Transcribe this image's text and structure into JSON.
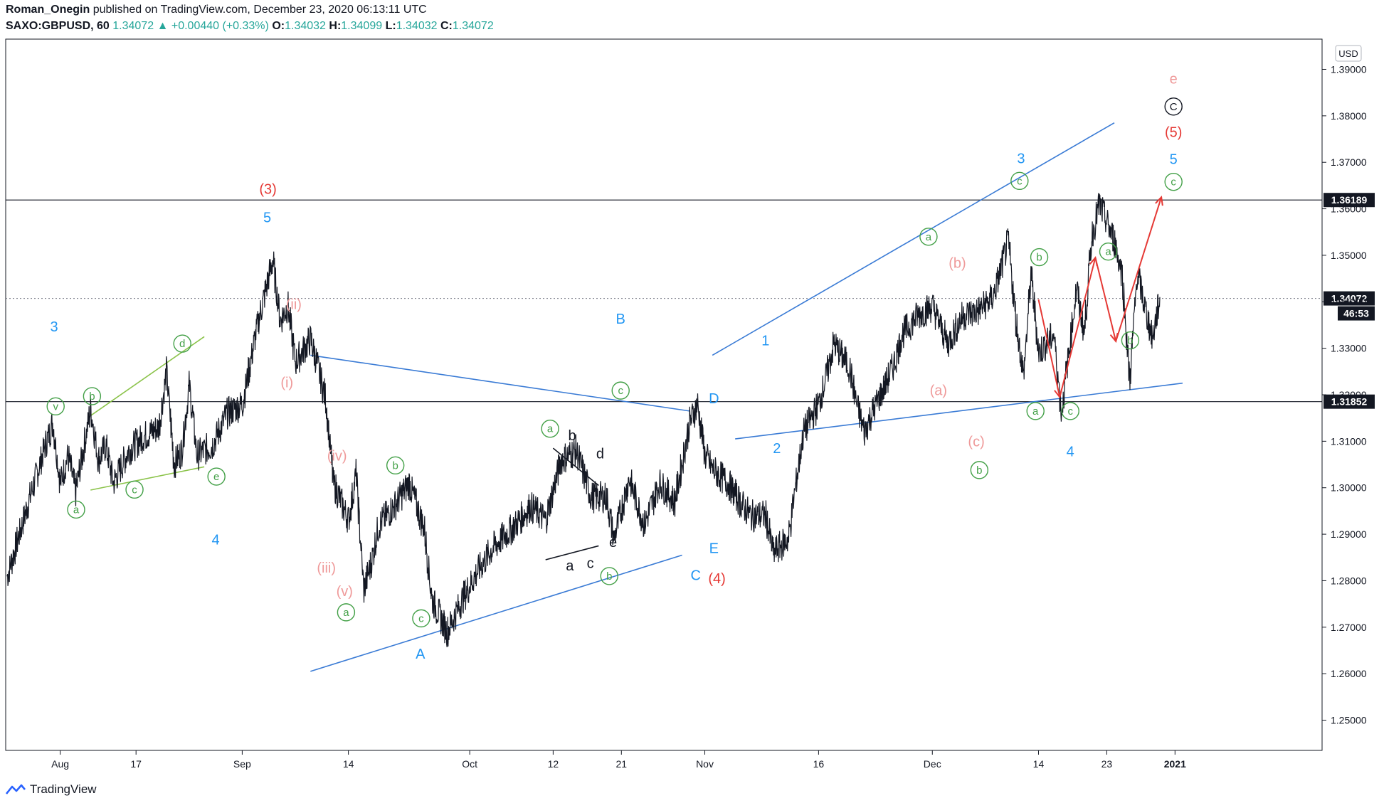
{
  "header": {
    "author": "Roman_Onegin",
    "published_text": "published on TradingView.com, December 23, 2020 06:13:11 UTC",
    "symbol": "SAXO:GBPUSD, 60",
    "last": "1.34072",
    "change_arrow": "▲",
    "change": "+0.00440 (+0.33%)",
    "o_label": "O:",
    "o": "1.34032",
    "h_label": "H:",
    "h": "1.34099",
    "l_label": "L:",
    "l": "1.34032",
    "c_label": "C:",
    "c": "1.34072"
  },
  "footer": {
    "brand": "TradingView",
    "icon": "tradingview-logo-icon"
  },
  "colors": {
    "blue": "#2196f3",
    "trend_blue": "#3a7bd5",
    "green": "#43a047",
    "light_green": "#8bc34a",
    "red": "#e53935",
    "salmon": "#ef9a9a",
    "black": "#131722",
    "up": "#26a69a"
  },
  "chart_data": {
    "type": "line",
    "title": "SAXO:GBPUSD, 60",
    "currency_label": "USD",
    "ylim": [
      1.2435,
      1.3965
    ],
    "y_ticks": [
      "1.25000",
      "1.26000",
      "1.27000",
      "1.28000",
      "1.29000",
      "1.30000",
      "1.31000",
      "1.32000",
      "1.33000",
      "1.34000",
      "1.35000",
      "1.36000",
      "1.37000",
      "1.38000",
      "1.39000"
    ],
    "x_domain": [
      0,
      152
    ],
    "x_ticks": [
      {
        "x": 7,
        "label": "Aug",
        "bold": false
      },
      {
        "x": 17,
        "label": "17",
        "bold": false
      },
      {
        "x": 31,
        "label": "Sep",
        "bold": false
      },
      {
        "x": 45,
        "label": "14",
        "bold": false
      },
      {
        "x": 61,
        "label": "Oct",
        "bold": false
      },
      {
        "x": 72,
        "label": "12",
        "bold": false
      },
      {
        "x": 81,
        "label": "21",
        "bold": false
      },
      {
        "x": 92,
        "label": "Nov",
        "bold": false
      },
      {
        "x": 107,
        "label": "16",
        "bold": false
      },
      {
        "x": 122,
        "label": "Dec",
        "bold": false
      },
      {
        "x": 136,
        "label": "14",
        "bold": false
      },
      {
        "x": 145,
        "label": "23",
        "bold": false
      },
      {
        "x": 154,
        "label": "2021",
        "bold": true
      }
    ],
    "price_path": [
      [
        0,
        1.281
      ],
      [
        3,
        1.298
      ],
      [
        5,
        1.309
      ],
      [
        6,
        1.314
      ],
      [
        7,
        1.301
      ],
      [
        8,
        1.307
      ],
      [
        9,
        1.299
      ],
      [
        11,
        1.317
      ],
      [
        12,
        1.306
      ],
      [
        13,
        1.309
      ],
      [
        14,
        1.301
      ],
      [
        16,
        1.308
      ],
      [
        18,
        1.311
      ],
      [
        20,
        1.313
      ],
      [
        21,
        1.325
      ],
      [
        22,
        1.305
      ],
      [
        23,
        1.308
      ],
      [
        24,
        1.322
      ],
      [
        25,
        1.307
      ],
      [
        27,
        1.309
      ],
      [
        29,
        1.316
      ],
      [
        31,
        1.318
      ],
      [
        33,
        1.335
      ],
      [
        34,
        1.342
      ],
      [
        35,
        1.349
      ],
      [
        36,
        1.336
      ],
      [
        37,
        1.339
      ],
      [
        38,
        1.327
      ],
      [
        40,
        1.332
      ],
      [
        42,
        1.319
      ],
      [
        43,
        1.301
      ],
      [
        45,
        1.293
      ],
      [
        46,
        1.303
      ],
      [
        47,
        1.278
      ],
      [
        48,
        1.284
      ],
      [
        49,
        1.292
      ],
      [
        51,
        1.296
      ],
      [
        53,
        1.301
      ],
      [
        55,
        1.291
      ],
      [
        56,
        1.276
      ],
      [
        58,
        1.269
      ],
      [
        60,
        1.276
      ],
      [
        62,
        1.282
      ],
      [
        64,
        1.287
      ],
      [
        67,
        1.292
      ],
      [
        69,
        1.296
      ],
      [
        71,
        1.293
      ],
      [
        73,
        1.306
      ],
      [
        75,
        1.308
      ],
      [
        76,
        1.303
      ],
      [
        77,
        1.298
      ],
      [
        79,
        1.298
      ],
      [
        80,
        1.289
      ],
      [
        82,
        1.302
      ],
      [
        84,
        1.292
      ],
      [
        86,
        1.301
      ],
      [
        88,
        1.297
      ],
      [
        90,
        1.314
      ],
      [
        91,
        1.318
      ],
      [
        92,
        1.307
      ],
      [
        93,
        1.304
      ],
      [
        95,
        1.301
      ],
      [
        97,
        1.296
      ],
      [
        98,
        1.294
      ],
      [
        100,
        1.294
      ],
      [
        101,
        1.286
      ],
      [
        103,
        1.289
      ],
      [
        104,
        1.301
      ],
      [
        105,
        1.312
      ],
      [
        107,
        1.318
      ],
      [
        108,
        1.324
      ],
      [
        109,
        1.331
      ],
      [
        111,
        1.326
      ],
      [
        112,
        1.318
      ],
      [
        113,
        1.312
      ],
      [
        114,
        1.316
      ],
      [
        116,
        1.323
      ],
      [
        117,
        1.327
      ],
      [
        118,
        1.333
      ],
      [
        120,
        1.337
      ],
      [
        122,
        1.339
      ],
      [
        124,
        1.331
      ],
      [
        126,
        1.337
      ],
      [
        128,
        1.338
      ],
      [
        130,
        1.341
      ],
      [
        132,
        1.353
      ],
      [
        133,
        1.336
      ],
      [
        134,
        1.324
      ],
      [
        135,
        1.346
      ],
      [
        136,
        1.329
      ],
      [
        138,
        1.333
      ],
      [
        139,
        1.316
      ],
      [
        141,
        1.343
      ],
      [
        142,
        1.333
      ],
      [
        143,
        1.354
      ],
      [
        144,
        1.361
      ],
      [
        146,
        1.353
      ],
      [
        147,
        1.346
      ],
      [
        148,
        1.323
      ],
      [
        149,
        1.346
      ],
      [
        150,
        1.339
      ],
      [
        151,
        1.332
      ],
      [
        152,
        1.341
      ]
    ],
    "horizontal_lines": [
      {
        "price": 1.36189,
        "label": "1.36189",
        "style": "solid"
      },
      {
        "price": 1.31852,
        "label": "1.31852",
        "style": "solid"
      },
      {
        "price": 1.34072,
        "label": "1.34072",
        "style": "dotted",
        "countdown": "46:53"
      }
    ],
    "trendlines": [
      {
        "from": [
          11,
          1.2995
        ],
        "to": [
          26,
          1.3045
        ],
        "color": "light_green"
      },
      {
        "from": [
          11,
          1.3155
        ],
        "to": [
          26,
          1.3325
        ],
        "color": "light_green"
      },
      {
        "from": [
          40,
          1.2605
        ],
        "to": [
          89,
          1.2855
        ],
        "color": "trend_blue"
      },
      {
        "from": [
          40,
          1.3285
        ],
        "to": [
          90,
          1.3165
        ],
        "color": "trend_blue"
      },
      {
        "from": [
          71,
          1.2845
        ],
        "to": [
          78,
          1.2875
        ],
        "color": "black"
      },
      {
        "from": [
          72,
          1.3085
        ],
        "to": [
          78,
          1.3005
        ],
        "color": "black"
      },
      {
        "from": [
          93,
          1.3285
        ],
        "to": [
          146,
          1.3785
        ],
        "color": "trend_blue"
      },
      {
        "from": [
          96,
          1.3105
        ],
        "to": [
          155,
          1.3225
        ],
        "color": "trend_blue"
      }
    ],
    "projection": {
      "color": "red",
      "points": [
        [
          136,
          1.3405
        ],
        [
          138.8,
          1.3195
        ],
        [
          143.5,
          1.3495
        ],
        [
          146.2,
          1.3315
        ],
        [
          152.2,
          1.3625
        ]
      ]
    },
    "annotations": [
      {
        "x": 6.2,
        "y": 1.3347,
        "text": "3",
        "kind": "plain",
        "color": "blue"
      },
      {
        "x": 27.5,
        "y": 1.2889,
        "text": "4",
        "kind": "plain",
        "color": "blue"
      },
      {
        "x": 6.4,
        "y": 1.3175,
        "text": "v",
        "kind": "circle",
        "color": "green"
      },
      {
        "x": 11.2,
        "y": 1.3197,
        "text": "b",
        "kind": "circle",
        "color": "green"
      },
      {
        "x": 9.1,
        "y": 1.2953,
        "text": "a",
        "kind": "circle",
        "color": "green"
      },
      {
        "x": 16.8,
        "y": 1.2996,
        "text": "c",
        "kind": "circle",
        "color": "green"
      },
      {
        "x": 23.1,
        "y": 1.331,
        "text": "d",
        "kind": "circle",
        "color": "green"
      },
      {
        "x": 27.6,
        "y": 1.3024,
        "text": "e",
        "kind": "circle",
        "color": "green"
      },
      {
        "x": 34.4,
        "y": 1.3643,
        "text": "(3)",
        "kind": "plain",
        "color": "red"
      },
      {
        "x": 34.3,
        "y": 1.3582,
        "text": "5",
        "kind": "plain",
        "color": "blue"
      },
      {
        "x": 37.8,
        "y": 1.3395,
        "text": "(ii)",
        "kind": "plain",
        "color": "salmon"
      },
      {
        "x": 36.9,
        "y": 1.3227,
        "text": "(i)",
        "kind": "plain",
        "color": "salmon"
      },
      {
        "x": 43.5,
        "y": 1.3069,
        "text": "(iv)",
        "kind": "plain",
        "color": "salmon"
      },
      {
        "x": 42.1,
        "y": 1.2828,
        "text": "(iii)",
        "kind": "plain",
        "color": "salmon"
      },
      {
        "x": 44.5,
        "y": 1.2778,
        "text": "(v)",
        "kind": "plain",
        "color": "salmon"
      },
      {
        "x": 44.7,
        "y": 1.2732,
        "text": "a",
        "kind": "circle",
        "color": "green"
      },
      {
        "x": 51.2,
        "y": 1.3048,
        "text": "b",
        "kind": "circle",
        "color": "green"
      },
      {
        "x": 54.6,
        "y": 1.2719,
        "text": "c",
        "kind": "circle",
        "color": "green"
      },
      {
        "x": 54.5,
        "y": 1.2643,
        "text": "A",
        "kind": "plain",
        "color": "blue"
      },
      {
        "x": 71.6,
        "y": 1.3127,
        "text": "a",
        "kind": "circle",
        "color": "green"
      },
      {
        "x": 74.5,
        "y": 1.3113,
        "text": "b",
        "kind": "plain",
        "color": "black"
      },
      {
        "x": 78.2,
        "y": 1.3074,
        "text": "d",
        "kind": "plain",
        "color": "black"
      },
      {
        "x": 79.9,
        "y": 1.2883,
        "text": "e",
        "kind": "plain",
        "color": "black"
      },
      {
        "x": 74.2,
        "y": 1.2833,
        "text": "a",
        "kind": "plain",
        "color": "black"
      },
      {
        "x": 76.9,
        "y": 1.2838,
        "text": "c",
        "kind": "plain",
        "color": "black"
      },
      {
        "x": 79.4,
        "y": 1.281,
        "text": "b",
        "kind": "circle",
        "color": "green"
      },
      {
        "x": 80.9,
        "y": 1.3364,
        "text": "B",
        "kind": "plain",
        "color": "blue"
      },
      {
        "x": 80.9,
        "y": 1.3209,
        "text": "c",
        "kind": "circle",
        "color": "green"
      },
      {
        "x": 93.2,
        "y": 1.3192,
        "text": "D",
        "kind": "plain",
        "color": "blue"
      },
      {
        "x": 93.2,
        "y": 1.287,
        "text": "E",
        "kind": "plain",
        "color": "blue"
      },
      {
        "x": 90.8,
        "y": 1.2812,
        "text": "C",
        "kind": "plain",
        "color": "blue"
      },
      {
        "x": 93.6,
        "y": 1.2805,
        "text": "(4)",
        "kind": "plain",
        "color": "red"
      },
      {
        "x": 100.0,
        "y": 1.3317,
        "text": "1",
        "kind": "plain",
        "color": "blue"
      },
      {
        "x": 101.5,
        "y": 1.3085,
        "text": "2",
        "kind": "plain",
        "color": "blue"
      },
      {
        "x": 121.5,
        "y": 1.354,
        "text": "a",
        "kind": "circle",
        "color": "green"
      },
      {
        "x": 125.3,
        "y": 1.3484,
        "text": "(b)",
        "kind": "plain",
        "color": "salmon"
      },
      {
        "x": 122.8,
        "y": 1.321,
        "text": "(a)",
        "kind": "plain",
        "color": "salmon"
      },
      {
        "x": 127.8,
        "y": 1.31,
        "text": "(c)",
        "kind": "plain",
        "color": "salmon"
      },
      {
        "x": 128.2,
        "y": 1.3038,
        "text": "b",
        "kind": "circle",
        "color": "green"
      },
      {
        "x": 133.7,
        "y": 1.3709,
        "text": "3",
        "kind": "plain",
        "color": "blue"
      },
      {
        "x": 133.5,
        "y": 1.366,
        "text": "c",
        "kind": "circle",
        "color": "green"
      },
      {
        "x": 136.1,
        "y": 1.3496,
        "text": "b",
        "kind": "circle",
        "color": "green"
      },
      {
        "x": 135.6,
        "y": 1.3165,
        "text": "a",
        "kind": "circle",
        "color": "green"
      },
      {
        "x": 140.2,
        "y": 1.3165,
        "text": "c",
        "kind": "circle",
        "color": "green"
      },
      {
        "x": 140.2,
        "y": 1.3078,
        "text": "4",
        "kind": "plain",
        "color": "blue"
      },
      {
        "x": 145.2,
        "y": 1.3508,
        "text": "a",
        "kind": "circle",
        "color": "green"
      },
      {
        "x": 148.1,
        "y": 1.3317,
        "text": "b",
        "kind": "circle",
        "color": "green"
      },
      {
        "x": 153.8,
        "y": 1.3707,
        "text": "5",
        "kind": "plain",
        "color": "blue"
      },
      {
        "x": 153.8,
        "y": 1.3658,
        "text": "c",
        "kind": "circle",
        "color": "green"
      },
      {
        "x": 153.8,
        "y": 1.3765,
        "text": "(5)",
        "kind": "plain",
        "color": "red"
      },
      {
        "x": 153.8,
        "y": 1.382,
        "text": "C",
        "kind": "circle",
        "color": "black"
      },
      {
        "x": 153.8,
        "y": 1.388,
        "text": "e",
        "kind": "plain",
        "color": "salmon"
      }
    ]
  }
}
